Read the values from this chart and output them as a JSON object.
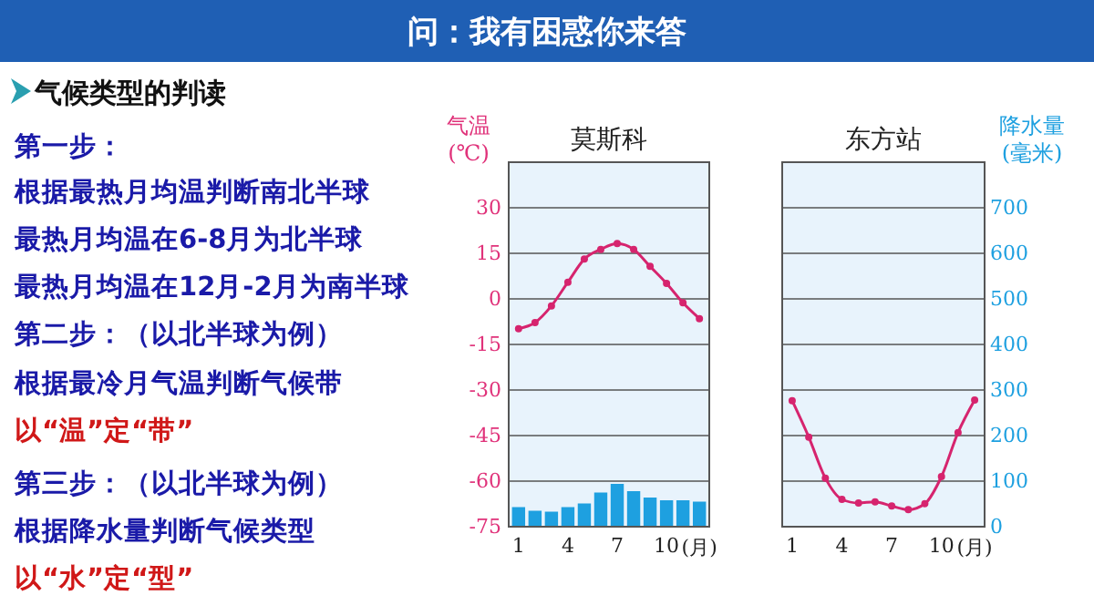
{
  "chart_data": [
    {
      "type": "other",
      "title": "问：我有困惑你来答",
      "subtitle": "气候类型的判读",
      "annotations": [
        "第一步：",
        "根据最热月均温判断南北半球",
        "最热月均温在6-8月为北半球",
        "最热月均温在12月-2月为南半球",
        "第二步：（以北半球为例）",
        "根据最冷月气温判断气候带",
        "以“温”定“带”",
        "第三步：（以北半球为例）",
        "根据降水量判断气候类型",
        "以“水”定“型”"
      ]
    },
    {
      "type": "line",
      "title": "莫斯科",
      "ylabel": "气温(℃)",
      "xlabel": "(月)",
      "x": [
        1,
        2,
        3,
        4,
        5,
        6,
        7,
        8,
        9,
        10,
        11,
        12
      ],
      "xlim": [
        0.4,
        12.6
      ],
      "xticks": [
        1,
        4,
        7,
        10
      ],
      "ylim": [
        -75,
        45
      ],
      "yticks": [
        -75,
        -60,
        -45,
        -30,
        -15,
        0,
        15,
        30
      ],
      "y2lim": [
        0,
        800
      ],
      "grid": "y",
      "marker": "circle",
      "series": [
        {
          "type": "bar",
          "axis": "y2",
          "color": "#1ea0e0",
          "values": [
            43,
            35,
            33,
            43,
            51,
            75,
            94,
            78,
            64,
            58,
            58,
            55
          ]
        },
        {
          "type": "line",
          "axis": "y",
          "color": "#d6246e",
          "values": [
            -9.8,
            -7.8,
            -2.3,
            5.5,
            13.1,
            16.3,
            18.2,
            16.3,
            10.7,
            5.1,
            -1.3,
            -6.5
          ]
        }
      ]
    },
    {
      "type": "line",
      "title": "东方站",
      "y2label": "降水量(毫米)",
      "xlabel": "(月)",
      "x": [
        1,
        2,
        3,
        4,
        5,
        6,
        7,
        8,
        9,
        10,
        11,
        12
      ],
      "xlim": [
        0.4,
        12.6
      ],
      "xticks": [
        1,
        4,
        7,
        10
      ],
      "ylim": [
        -75,
        45
      ],
      "y2lim": [
        0,
        800
      ],
      "y2ticks": [
        0,
        100,
        200,
        300,
        400,
        500,
        600,
        700
      ],
      "grid": "y",
      "marker": "circle",
      "series": [
        {
          "type": "line",
          "axis": "y",
          "color": "#d6246e",
          "values": [
            -33.5,
            -45.5,
            -59,
            -66,
            -67.2,
            -66.8,
            -68.2,
            -69.4,
            -67.4,
            -58.5,
            -44,
            -33.3
          ]
        }
      ]
    }
  ]
}
